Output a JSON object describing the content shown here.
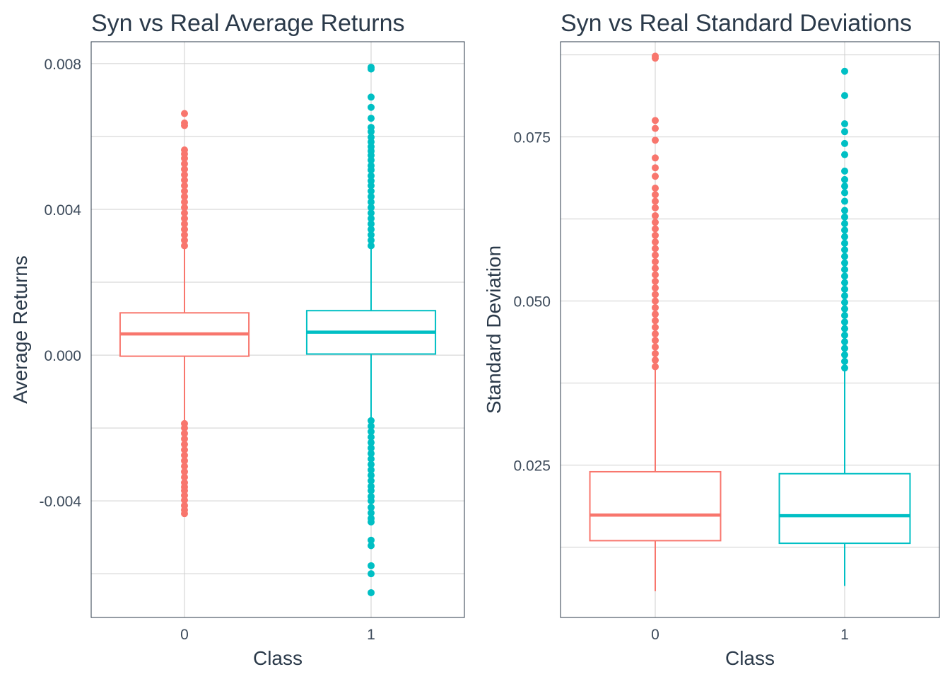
{
  "chart_data": [
    {
      "type": "box",
      "title": "Syn vs Real Average Returns",
      "xlabel": "Class",
      "ylabel": "Average Returns",
      "ylim": [
        -0.0072,
        0.0086
      ],
      "y_ticks": [
        -0.004,
        0.0,
        0.004,
        0.008
      ],
      "y_tick_labels": [
        "-0.004",
        "0.000",
        "0.004",
        "0.008"
      ],
      "y_minor": [
        -0.006,
        -0.002,
        0.002,
        0.006
      ],
      "grid": true,
      "categories": [
        "0",
        "1"
      ],
      "colors": [
        "#f8766d",
        "#00bfc4"
      ],
      "boxes": [
        {
          "category": "0",
          "q1": -3e-05,
          "median": 0.00058,
          "q3": 0.00116,
          "whisker_low": -0.00185,
          "whisker_high": 0.00298,
          "outliers_high": [
            0.003,
            0.00315,
            0.0033,
            0.00345,
            0.0036,
            0.00375,
            0.0039,
            0.00405,
            0.0042,
            0.00435,
            0.0045,
            0.00465,
            0.0048,
            0.00495,
            0.0051,
            0.00525,
            0.0054,
            0.00552,
            0.00563,
            0.0063,
            0.00637,
            0.00663
          ],
          "outliers_low": [
            -0.00188,
            -0.002,
            -0.00215,
            -0.0023,
            -0.00245,
            -0.0026,
            -0.00275,
            -0.0029,
            -0.00305,
            -0.0032,
            -0.00335,
            -0.0035,
            -0.00362,
            -0.00372,
            -0.00385,
            -0.00398,
            -0.00413,
            -0.00425,
            -0.00435
          ]
        },
        {
          "category": "1",
          "q1": 3e-05,
          "median": 0.00063,
          "q3": 0.00122,
          "whisker_low": -0.00175,
          "whisker_high": 0.00298,
          "outliers_high": [
            0.003,
            0.00315,
            0.0033,
            0.00345,
            0.0036,
            0.00375,
            0.0039,
            0.00405,
            0.0042,
            0.00435,
            0.0045,
            0.00465,
            0.00478,
            0.00492,
            0.00508,
            0.0052,
            0.00535,
            0.00548,
            0.0056,
            0.00572,
            0.00585,
            0.00598,
            0.00613,
            0.00625,
            0.0065,
            0.0068,
            0.00708,
            0.00785,
            0.0079
          ],
          "outliers_low": [
            -0.0018,
            -0.00195,
            -0.0021,
            -0.00225,
            -0.0024,
            -0.00255,
            -0.0027,
            -0.00285,
            -0.003,
            -0.00315,
            -0.0033,
            -0.00345,
            -0.0036,
            -0.00372,
            -0.00388,
            -0.004,
            -0.00418,
            -0.00433,
            -0.00448,
            -0.00458,
            -0.00508,
            -0.00523,
            -0.00578,
            -0.006,
            -0.00652
          ]
        }
      ]
    },
    {
      "type": "box",
      "title": "Syn vs Real Standard Deviations",
      "xlabel": "Class",
      "ylabel": "Standard Deviation",
      "ylim": [
        0.0018,
        0.0895
      ],
      "y_ticks": [
        0.025,
        0.05,
        0.075
      ],
      "y_tick_labels": [
        "0.025",
        "0.050",
        "0.075"
      ],
      "y_minor": [
        0.0125,
        0.0375,
        0.0625,
        0.0875
      ],
      "grid": true,
      "categories": [
        "0",
        "1"
      ],
      "colors": [
        "#f8766d",
        "#00bfc4"
      ],
      "boxes": [
        {
          "category": "0",
          "q1": 0.0135,
          "median": 0.0174,
          "q3": 0.024,
          "whisker_low": 0.0058,
          "whisker_high": 0.0398,
          "outliers_high": [
            0.04,
            0.041,
            0.042,
            0.043,
            0.044,
            0.045,
            0.046,
            0.047,
            0.048,
            0.049,
            0.05,
            0.051,
            0.052,
            0.053,
            0.054,
            0.055,
            0.056,
            0.057,
            0.058,
            0.059,
            0.06,
            0.061,
            0.062,
            0.063,
            0.0642,
            0.0652,
            0.0662,
            0.0672,
            0.069,
            0.0703,
            0.0718,
            0.0745,
            0.0763,
            0.0775,
            0.087,
            0.0873
          ]
        },
        {
          "category": "1",
          "q1": 0.0131,
          "median": 0.0173,
          "q3": 0.0237,
          "whisker_low": 0.0066,
          "whisker_high": 0.0395,
          "outliers_high": [
            0.0398,
            0.0408,
            0.0418,
            0.0428,
            0.0438,
            0.0448,
            0.0458,
            0.0468,
            0.0478,
            0.0488,
            0.0498,
            0.0508,
            0.0518,
            0.0528,
            0.0538,
            0.0548,
            0.0558,
            0.0568,
            0.0578,
            0.0588,
            0.0598,
            0.0608,
            0.0618,
            0.0628,
            0.0638,
            0.0652,
            0.0665,
            0.0675,
            0.0685,
            0.0698,
            0.0723,
            0.074,
            0.0758,
            0.077,
            0.0813,
            0.085
          ]
        }
      ]
    }
  ]
}
